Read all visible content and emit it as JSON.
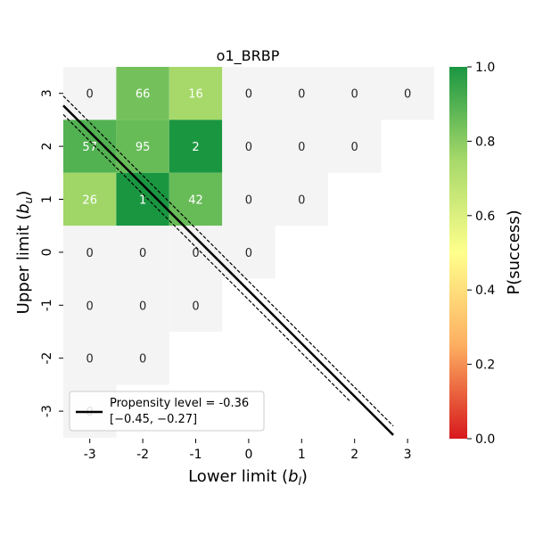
{
  "chart_data": {
    "type": "heatmap",
    "title": "o1_BRBP",
    "xlabel_main": "Lower limit (",
    "xlabel_var": "b",
    "xlabel_sub": "l",
    "xlabel_end": ")",
    "ylabel_main": "Upper limit (",
    "ylabel_var": "b",
    "ylabel_sub": "u",
    "ylabel_end": ")",
    "x_ticks": [
      "-3",
      "-2",
      "-1",
      "0",
      "1",
      "2",
      "3"
    ],
    "y_ticks": [
      "3",
      "2",
      "1",
      "0",
      "-1",
      "-2",
      "-3"
    ],
    "x_values": [
      -3,
      -2,
      -1,
      0,
      1,
      2,
      3
    ],
    "y_values": [
      3,
      2,
      1,
      0,
      -1,
      -2,
      -3
    ],
    "cells": [
      {
        "x": -3,
        "y": 3,
        "label": "0",
        "p": null
      },
      {
        "x": -2,
        "y": 3,
        "label": "66",
        "p": 0.84
      },
      {
        "x": -1,
        "y": 3,
        "label": "16",
        "p": 0.75
      },
      {
        "x": 0,
        "y": 3,
        "label": "0",
        "p": null
      },
      {
        "x": 1,
        "y": 3,
        "label": "0",
        "p": null
      },
      {
        "x": 2,
        "y": 3,
        "label": "0",
        "p": null
      },
      {
        "x": 3,
        "y": 3,
        "label": "0",
        "p": null
      },
      {
        "x": -3,
        "y": 2,
        "label": "57",
        "p": 0.9
      },
      {
        "x": -2,
        "y": 2,
        "label": "95",
        "p": 0.86
      },
      {
        "x": -1,
        "y": 2,
        "label": "2",
        "p": 1.0
      },
      {
        "x": 0,
        "y": 2,
        "label": "0",
        "p": null
      },
      {
        "x": 1,
        "y": 2,
        "label": "0",
        "p": null
      },
      {
        "x": 2,
        "y": 2,
        "label": "0",
        "p": null
      },
      {
        "x": -3,
        "y": 1,
        "label": "26",
        "p": 0.76
      },
      {
        "x": -2,
        "y": 1,
        "label": "1",
        "p": 1.0
      },
      {
        "x": -1,
        "y": 1,
        "label": "42",
        "p": 0.86
      },
      {
        "x": 0,
        "y": 1,
        "label": "0",
        "p": null
      },
      {
        "x": 1,
        "y": 1,
        "label": "0",
        "p": null
      },
      {
        "x": -3,
        "y": 0,
        "label": "0",
        "p": null
      },
      {
        "x": -2,
        "y": 0,
        "label": "0",
        "p": null
      },
      {
        "x": -1,
        "y": 0,
        "label": "0",
        "p": null
      },
      {
        "x": 0,
        "y": 0,
        "label": "0",
        "p": null
      },
      {
        "x": -3,
        "y": -1,
        "label": "0",
        "p": null
      },
      {
        "x": -2,
        "y": -1,
        "label": "0",
        "p": null
      },
      {
        "x": -1,
        "y": -1,
        "label": "0",
        "p": null
      },
      {
        "x": -3,
        "y": -2,
        "label": "0",
        "p": null
      },
      {
        "x": -2,
        "y": -2,
        "label": "0",
        "p": null
      },
      {
        "x": -3,
        "y": -3,
        "label": "0",
        "p": null
      }
    ],
    "propensity_line": {
      "x_start": -3.5,
      "y_start": 2.77,
      "x_end": 2.73,
      "y_end": -3.45
    },
    "ci_lower_line": {
      "x_start": -3.5,
      "y_start": 2.6,
      "x_end": 1.93,
      "y_end": -2.83
    },
    "ci_upper_line": {
      "x_start": -3.5,
      "y_start": 2.95,
      "x_end": 2.73,
      "y_end": -3.28
    },
    "legend": {
      "label": "Propensity level = -0.36",
      "interval": "[−0.45, −0.27]",
      "position": "lower-left"
    },
    "colorbar": {
      "label": "P(success)",
      "ticks": [
        "0.0",
        "0.2",
        "0.4",
        "0.6",
        "0.8",
        "1.0"
      ],
      "tick_values": [
        0.0,
        0.2,
        0.4,
        0.6,
        0.8,
        1.0
      ],
      "colors": [
        "#d7191c",
        "#fdae61",
        "#ffff8c",
        "#a6d96a",
        "#1a9641"
      ]
    },
    "empty_cell_color": "#f4f4f4"
  }
}
